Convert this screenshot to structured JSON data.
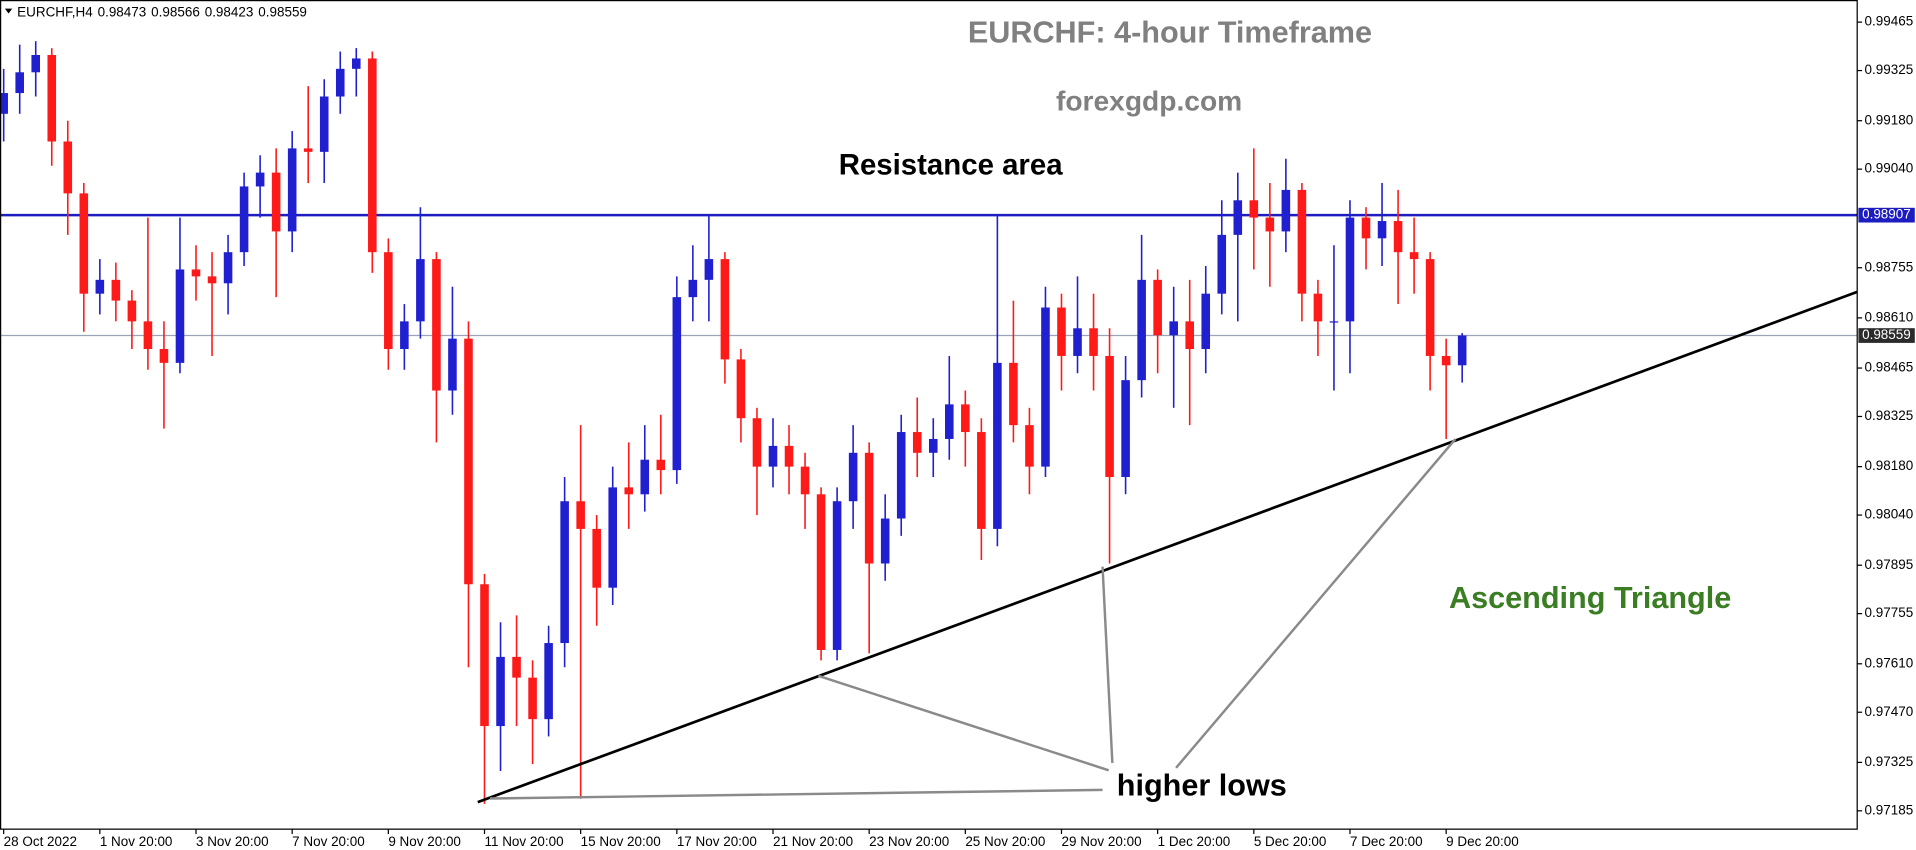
{
  "chart_data": {
    "type": "candlestick",
    "title": "EURCHF: 4-hour Timeframe",
    "symbol": "EURCHF,H4",
    "annotations": {
      "source": "forexgdp.com",
      "resistance": "Resistance area",
      "pattern": "Ascending Triangle",
      "higher_lows": "higher lows"
    },
    "up_color": "#2020d0",
    "down_color": "#ff1a1a",
    "resistance_color": "#1c1cc0",
    "resistance_level": 0.98907,
    "grid": false,
    "ylim": [
      0.97132,
      0.99529
    ],
    "yticks": [
      0.99465,
      0.99325,
      {
        "value": 0.9918,
        "label": "0.99180"
      },
      {
        "value": 0.9904,
        "label": "0.99040"
      },
      0.98755,
      {
        "value": 0.9861,
        "label": "0.98610"
      },
      0.98465,
      0.98325,
      {
        "value": 0.9818,
        "label": "0.98180"
      },
      {
        "value": 0.9804,
        "label": "0.98040"
      },
      0.97895,
      0.97755,
      {
        "value": 0.9761,
        "label": "0.97610"
      },
      {
        "value": 0.9747,
        "label": "0.97470"
      },
      0.97325,
      0.97185
    ],
    "categories": [
      "28 Oct 2022",
      null,
      null,
      null,
      null,
      null,
      "1 Nov 20:00",
      null,
      null,
      null,
      null,
      null,
      "3 Nov 20:00",
      null,
      null,
      null,
      null,
      null,
      "7 Nov 20:00",
      null,
      null,
      null,
      null,
      null,
      "9 Nov 20:00",
      null,
      null,
      null,
      null,
      null,
      "11 Nov 20:00",
      null,
      null,
      null,
      null,
      null,
      "15 Nov 20:00",
      null,
      null,
      null,
      null,
      null,
      "17 Nov 20:00",
      null,
      null,
      null,
      null,
      null,
      "21 Nov 20:00",
      null,
      null,
      null,
      null,
      null,
      "23 Nov 20:00",
      null,
      null,
      null,
      null,
      null,
      "25 Nov 20:00",
      null,
      null,
      null,
      null,
      null,
      "29 Nov 20:00",
      null,
      null,
      null,
      null,
      null,
      "1 Dec 20:00",
      null,
      null,
      null,
      null,
      null,
      "5 Dec 20:00",
      null,
      null,
      null,
      null,
      null,
      "7 Dec 20:00",
      null,
      null,
      null,
      null,
      null,
      "9 Dec 20:00",
      null
    ],
    "open": [
      0.992,
      0.9926,
      0.9932,
      0.9937,
      0.9912,
      0.9897,
      0.9868,
      0.9872,
      0.9866,
      0.986,
      0.9852,
      0.9848,
      0.9875,
      0.9873,
      0.9871,
      0.988,
      0.9899,
      0.9903,
      0.9886,
      0.991,
      0.9909,
      0.9925,
      0.9933,
      0.9936,
      0.988,
      0.9852,
      0.986,
      0.9878,
      0.984,
      0.9855,
      0.9784,
      0.9743,
      0.9763,
      0.9757,
      0.9745,
      0.9767,
      0.9808,
      0.98,
      0.9783,
      0.9812,
      0.981,
      0.982,
      0.9817,
      0.9867,
      0.9872,
      0.9878,
      0.9849,
      0.9832,
      0.9818,
      0.9824,
      0.9818,
      0.981,
      0.9765,
      0.9808,
      0.9822,
      0.979,
      0.9803,
      0.9828,
      0.9822,
      0.9826,
      0.9836,
      0.9828,
      0.98,
      0.9848,
      0.983,
      0.9818,
      0.9864,
      0.985,
      0.9858,
      0.985,
      0.9815,
      0.9843,
      0.9872,
      0.9856,
      0.986,
      0.9852,
      0.9868,
      0.9885,
      0.9895,
      0.989,
      0.9886,
      0.9898,
      0.9868,
      0.986,
      0.986,
      0.989,
      0.9884,
      0.9889,
      0.988,
      0.9878,
      0.985,
      0.98473
    ],
    "high": [
      0.9933,
      0.994,
      0.9941,
      0.9939,
      0.9918,
      0.99,
      0.9878,
      0.9877,
      0.9869,
      0.989,
      0.986,
      0.989,
      0.9882,
      0.988,
      0.9885,
      0.9903,
      0.9908,
      0.991,
      0.9915,
      0.9928,
      0.993,
      0.9938,
      0.9939,
      0.9938,
      0.9884,
      0.9865,
      0.9893,
      0.988,
      0.987,
      0.986,
      0.9787,
      0.9773,
      0.9775,
      0.9762,
      0.9772,
      0.9815,
      0.983,
      0.9804,
      0.9818,
      0.9825,
      0.983,
      0.9833,
      0.9873,
      0.9882,
      0.98907,
      0.988,
      0.9852,
      0.9835,
      0.9832,
      0.983,
      0.9822,
      0.9812,
      0.9812,
      0.983,
      0.9825,
      0.981,
      0.9833,
      0.9838,
      0.9832,
      0.985,
      0.984,
      0.9832,
      0.98907,
      0.9866,
      0.9835,
      0.987,
      0.9868,
      0.9873,
      0.9868,
      0.9858,
      0.985,
      0.9885,
      0.9875,
      0.987,
      0.9872,
      0.9876,
      0.9895,
      0.9903,
      0.991,
      0.99,
      0.9907,
      0.99,
      0.9872,
      0.9882,
      0.9895,
      0.9893,
      0.99,
      0.9898,
      0.989,
      0.988,
      0.9855,
      0.98566
    ],
    "low": [
      0.9912,
      0.992,
      0.9925,
      0.9905,
      0.9885,
      0.9857,
      0.9862,
      0.986,
      0.9852,
      0.9846,
      0.9829,
      0.9845,
      0.9866,
      0.985,
      0.9862,
      0.9876,
      0.989,
      0.9867,
      0.988,
      0.99,
      0.99,
      0.992,
      0.9925,
      0.9874,
      0.9846,
      0.9846,
      0.9855,
      0.9825,
      0.9833,
      0.976,
      0.97205,
      0.973,
      0.9743,
      0.9732,
      0.974,
      0.976,
      0.9722,
      0.9772,
      0.9778,
      0.98,
      0.9805,
      0.981,
      0.9813,
      0.986,
      0.986,
      0.9842,
      0.9825,
      0.9804,
      0.9812,
      0.981,
      0.98,
      0.9762,
      0.9762,
      0.98,
      0.9764,
      0.9785,
      0.9798,
      0.9815,
      0.9815,
      0.982,
      0.9818,
      0.9791,
      0.9795,
      0.9825,
      0.981,
      0.9815,
      0.984,
      0.9845,
      0.984,
      0.979,
      0.981,
      0.9838,
      0.9845,
      0.9835,
      0.983,
      0.9845,
      0.9862,
      0.986,
      0.9875,
      0.987,
      0.988,
      0.986,
      0.985,
      0.984,
      0.9845,
      0.9875,
      0.9876,
      0.9865,
      0.9868,
      0.984,
      0.9826,
      0.98423
    ],
    "close": [
      0.9926,
      0.9932,
      0.9937,
      0.9912,
      0.9897,
      0.9868,
      0.9872,
      0.9866,
      0.986,
      0.9852,
      0.9848,
      0.9875,
      0.9873,
      0.9871,
      0.988,
      0.9899,
      0.9903,
      0.9886,
      0.991,
      0.9909,
      0.9925,
      0.9933,
      0.9936,
      0.988,
      0.9852,
      0.986,
      0.9878,
      0.984,
      0.9855,
      0.9784,
      0.9743,
      0.9763,
      0.9757,
      0.9745,
      0.9767,
      0.9808,
      0.98,
      0.9783,
      0.9812,
      0.981,
      0.982,
      0.9817,
      0.9867,
      0.9872,
      0.9878,
      0.9849,
      0.9832,
      0.9818,
      0.9824,
      0.9818,
      0.981,
      0.9765,
      0.9808,
      0.9822,
      0.979,
      0.9803,
      0.9828,
      0.9822,
      0.9826,
      0.9836,
      0.9828,
      0.98,
      0.9848,
      0.983,
      0.9818,
      0.9864,
      0.985,
      0.9858,
      0.985,
      0.9815,
      0.9843,
      0.9872,
      0.9856,
      0.986,
      0.9852,
      0.9868,
      0.9885,
      0.9895,
      0.989,
      0.9886,
      0.9898,
      0.9868,
      0.986,
      0.986,
      0.989,
      0.9884,
      0.9889,
      0.988,
      0.9878,
      0.985,
      0.98473,
      0.98559
    ]
  }
}
